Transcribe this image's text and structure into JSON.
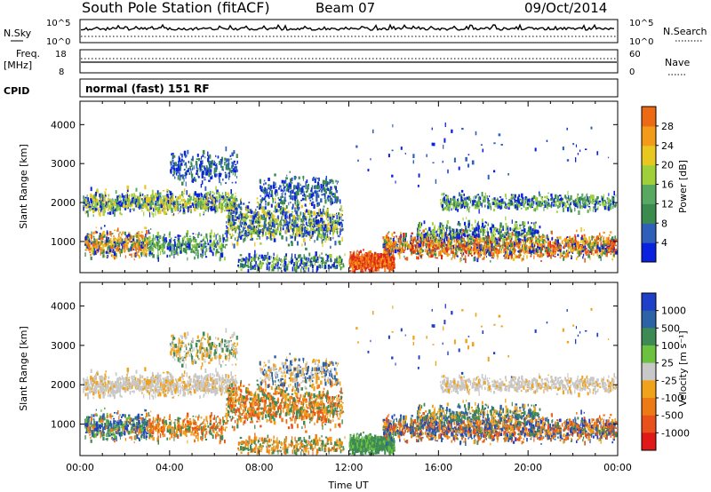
{
  "header": {
    "station": "South Pole Station (fitACF)",
    "beam": "Beam 07",
    "date": "09/Oct/2014"
  },
  "summary_panels": {
    "nsky_label": "N.Sky",
    "nsky_ticks": [
      "10^5",
      "10^0"
    ],
    "nsearch_label": "N.Search",
    "nsearch_ticks": [
      "10^5",
      "10^0"
    ],
    "freq_label_1": "Freq.",
    "freq_label_2": "[MHz]",
    "freq_ticks": [
      "18",
      "8"
    ],
    "nave_label": "Nave",
    "nave_ticks": [
      "60",
      "0"
    ],
    "cpid_label": "CPID",
    "cpid_value": "normal (fast) 151 RF"
  },
  "chart_data": [
    {
      "type": "heatmap",
      "name": "power",
      "ylabel": "Slant Range [km]",
      "xlabel": "",
      "yticks": [
        "1000",
        "2000",
        "3000",
        "4000"
      ],
      "ylim": [
        200,
        4600
      ],
      "xlim_hours": [
        0,
        24
      ],
      "colorbar_label": "Power [dB]",
      "colorbar_ticks": [
        "4",
        "8",
        "12",
        "16",
        "20",
        "24",
        "28"
      ],
      "colorbar_range": [
        0,
        32
      ],
      "colors": [
        "#0a22e0",
        "#2f5fb8",
        "#3b8a4e",
        "#59a861",
        "#9fd03a",
        "#e8c81e",
        "#f39a1a",
        "#ec6a14",
        "#e02818"
      ]
    },
    {
      "type": "heatmap",
      "name": "velocity",
      "ylabel": "Slant Range [km]",
      "xlabel": "Time UT",
      "yticks": [
        "1000",
        "2000",
        "3000",
        "4000"
      ],
      "ylim": [
        200,
        4600
      ],
      "xticks": [
        "00:00",
        "04:00",
        "08:00",
        "12:00",
        "16:00",
        "20:00",
        "00:00"
      ],
      "xlim_hours": [
        0,
        24
      ],
      "colorbar_label": "Velocity [m s⁻¹]",
      "colorbar_ticks": [
        "1000",
        "500",
        "100",
        "25",
        "-25",
        "-100",
        "-500",
        "-1000"
      ],
      "colors": [
        "#1f3fc8",
        "#2c62a6",
        "#3e8a55",
        "#6cc23f",
        "#c8c8c8",
        "#f0a21a",
        "#ee7a16",
        "#e8521a",
        "#e01818"
      ]
    }
  ]
}
